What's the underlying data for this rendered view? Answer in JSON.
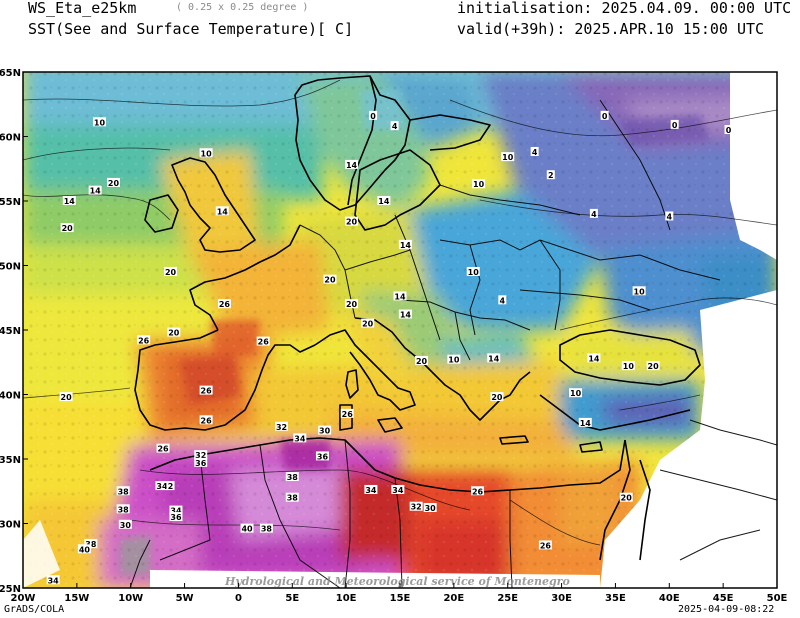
{
  "header": {
    "model_name": "WS_Eta_e25km",
    "resolution": "( 0.25 x 0.25 degree )",
    "variable": "SST(See and Surface Temperature)[ C]",
    "init_label": "initialisation: 2025.04.09. 00:00 UTC",
    "valid_label": "valid(+39h): 2025.APR.10 15:00 UTC"
  },
  "footer": {
    "software": "GrADS/COLA",
    "timestamp": "2025-04-09-08:22"
  },
  "map": {
    "credit": "Hydrological and Meteorological service of Montenegro",
    "lon_ticks": [
      "20W",
      "15W",
      "10W",
      "5W",
      "0",
      "5E",
      "10E",
      "15E",
      "20E",
      "25E",
      "30E",
      "35E",
      "40E",
      "45E",
      "50E"
    ],
    "lat_ticks": [
      "65N",
      "60N",
      "55N",
      "50N",
      "45N",
      "40N",
      "35N",
      "30N",
      "25N"
    ],
    "lon_range": [
      -20,
      50
    ],
    "lat_range": [
      25,
      65
    ],
    "contour_labels": [
      {
        "text": "0",
        "lon": 12.5,
        "lat": 61.6
      },
      {
        "text": "0",
        "lon": 34.0,
        "lat": 61.6
      },
      {
        "text": "0",
        "lon": 40.5,
        "lat": 60.9
      },
      {
        "text": "0",
        "lon": 45.5,
        "lat": 60.5
      },
      {
        "text": "4",
        "lon": 14.5,
        "lat": 60.8
      },
      {
        "text": "4",
        "lon": 27.5,
        "lat": 58.8
      },
      {
        "text": "2",
        "lon": 29.0,
        "lat": 57.0
      },
      {
        "text": "4",
        "lon": 40.0,
        "lat": 53.8
      },
      {
        "text": "4",
        "lon": 33.0,
        "lat": 54.0
      },
      {
        "text": "10",
        "lon": -12.9,
        "lat": 61.1
      },
      {
        "text": "10",
        "lon": -3.0,
        "lat": 58.7
      },
      {
        "text": "10",
        "lon": 25.0,
        "lat": 58.4
      },
      {
        "text": "10",
        "lon": 22.3,
        "lat": 56.3
      },
      {
        "text": "14",
        "lon": 10.5,
        "lat": 57.8
      },
      {
        "text": "14",
        "lon": -15.7,
        "lat": 55.0
      },
      {
        "text": "20",
        "lon": -11.6,
        "lat": 56.4
      },
      {
        "text": "14",
        "lon": -13.3,
        "lat": 55.8
      },
      {
        "text": "14",
        "lon": -1.5,
        "lat": 54.2
      },
      {
        "text": "20",
        "lon": -15.9,
        "lat": 52.9
      },
      {
        "text": "14",
        "lon": 13.5,
        "lat": 55.0
      },
      {
        "text": "20",
        "lon": 10.5,
        "lat": 53.4
      },
      {
        "text": "14",
        "lon": 15.5,
        "lat": 51.6
      },
      {
        "text": "20",
        "lon": -6.3,
        "lat": 49.5
      },
      {
        "text": "20",
        "lon": 8.5,
        "lat": 48.9
      },
      {
        "text": "10",
        "lon": 21.8,
        "lat": 49.5
      },
      {
        "text": "4",
        "lon": 24.5,
        "lat": 47.3
      },
      {
        "text": "10",
        "lon": 37.2,
        "lat": 48.0
      },
      {
        "text": "14",
        "lon": 15.0,
        "lat": 47.6
      },
      {
        "text": "20",
        "lon": 10.5,
        "lat": 47.0
      },
      {
        "text": "14",
        "lon": 15.5,
        "lat": 46.2
      },
      {
        "text": "20",
        "lon": 12.0,
        "lat": 45.5
      },
      {
        "text": "26",
        "lon": -1.3,
        "lat": 47.0
      },
      {
        "text": "26",
        "lon": -8.8,
        "lat": 44.2
      },
      {
        "text": "20",
        "lon": -6.0,
        "lat": 44.8
      },
      {
        "text": "26",
        "lon": 2.3,
        "lat": 44.1
      },
      {
        "text": "20",
        "lon": 17.0,
        "lat": 42.6
      },
      {
        "text": "14",
        "lon": 33.0,
        "lat": 42.8
      },
      {
        "text": "10",
        "lon": 20.0,
        "lat": 42.7
      },
      {
        "text": "14",
        "lon": 23.7,
        "lat": 42.8
      },
      {
        "text": "10",
        "lon": 36.2,
        "lat": 42.2
      },
      {
        "text": "20",
        "lon": 38.5,
        "lat": 42.2
      },
      {
        "text": "20",
        "lon": 24.0,
        "lat": 39.8
      },
      {
        "text": "10",
        "lon": 31.3,
        "lat": 40.1
      },
      {
        "text": "20",
        "lon": -16.0,
        "lat": 39.8
      },
      {
        "text": "26",
        "lon": -3.0,
        "lat": 40.3
      },
      {
        "text": "26",
        "lon": -3.0,
        "lat": 38.0
      },
      {
        "text": "26",
        "lon": 10.1,
        "lat": 38.5
      },
      {
        "text": "14",
        "lon": 32.2,
        "lat": 37.8
      },
      {
        "text": "32",
        "lon": 4.0,
        "lat": 37.5
      },
      {
        "text": "30",
        "lon": 8.0,
        "lat": 37.2
      },
      {
        "text": "34",
        "lon": 5.7,
        "lat": 36.6
      },
      {
        "text": "26",
        "lon": -7.0,
        "lat": 35.8
      },
      {
        "text": "32",
        "lon": -3.5,
        "lat": 35.3
      },
      {
        "text": "36",
        "lon": 7.8,
        "lat": 35.2
      },
      {
        "text": "36",
        "lon": -3.5,
        "lat": 34.7
      },
      {
        "text": "38",
        "lon": 5.0,
        "lat": 33.6
      },
      {
        "text": "38",
        "lon": -10.7,
        "lat": 32.5
      },
      {
        "text": "34",
        "lon": -7.1,
        "lat": 32.9
      },
      {
        "text": "2",
        "lon": -6.3,
        "lat": 32.9
      },
      {
        "text": "34",
        "lon": 12.3,
        "lat": 32.6
      },
      {
        "text": "34",
        "lon": 14.8,
        "lat": 32.6
      },
      {
        "text": "26",
        "lon": 22.2,
        "lat": 32.5
      },
      {
        "text": "38",
        "lon": 5.0,
        "lat": 32.0
      },
      {
        "text": "38",
        "lon": -10.7,
        "lat": 31.1
      },
      {
        "text": "34",
        "lon": -5.8,
        "lat": 31.0
      },
      {
        "text": "36",
        "lon": -5.8,
        "lat": 30.5
      },
      {
        "text": "32",
        "lon": 16.5,
        "lat": 31.3
      },
      {
        "text": "30",
        "lon": 17.8,
        "lat": 31.2
      },
      {
        "text": "20",
        "lon": 36.0,
        "lat": 32.0
      },
      {
        "text": "30",
        "lon": -10.5,
        "lat": 29.9
      },
      {
        "text": "40",
        "lon": 0.8,
        "lat": 29.6
      },
      {
        "text": "38",
        "lon": 2.6,
        "lat": 29.6
      },
      {
        "text": "26",
        "lon": 28.5,
        "lat": 28.3
      },
      {
        "text": "38",
        "lon": -13.7,
        "lat": 28.4
      },
      {
        "text": "40",
        "lon": -14.3,
        "lat": 28.0
      },
      {
        "text": "34",
        "lon": -17.2,
        "lat": 25.6
      }
    ]
  }
}
